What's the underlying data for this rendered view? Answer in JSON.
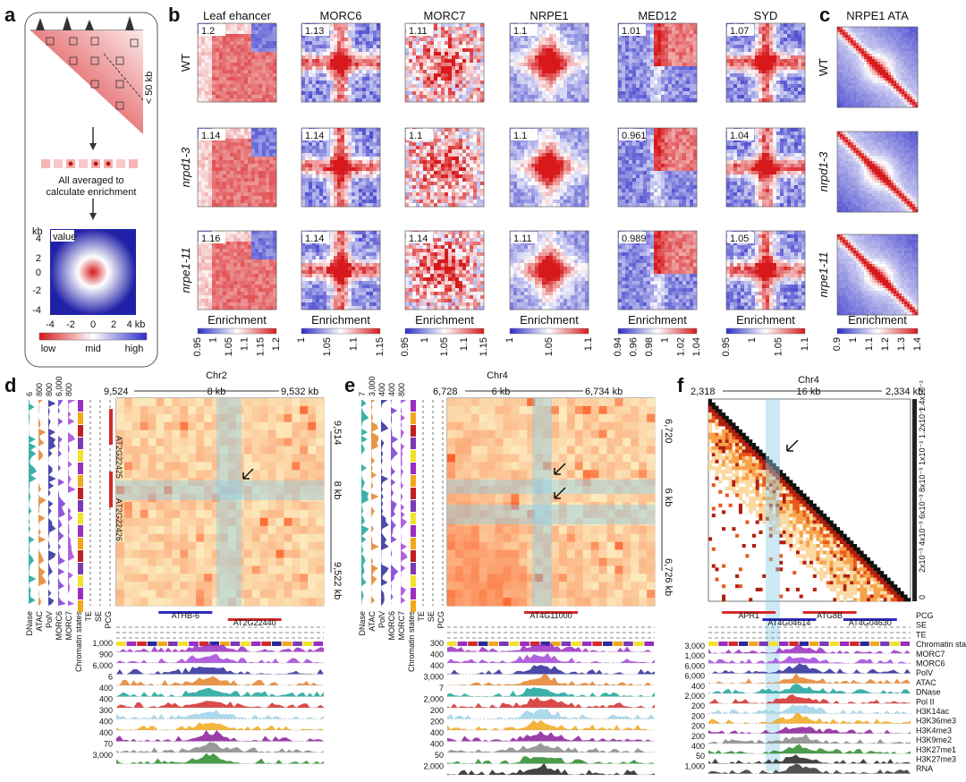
{
  "panels": [
    "a",
    "b",
    "c",
    "d",
    "e",
    "f"
  ],
  "panel_a": {
    "kb_label": "< 50 kb",
    "avg_text": [
      "All averaged to",
      "calculate enrichment"
    ],
    "value_label": "value",
    "ylabel": "kb",
    "yticks": [
      "4",
      "2",
      "0",
      "-2",
      "-4"
    ],
    "xticks": [
      "-4",
      "-2",
      "0",
      "2",
      "4 kb"
    ],
    "legend": [
      "low",
      "mid",
      "high"
    ],
    "colors": {
      "low": "#d7191c",
      "mid": "#ffffff",
      "high": "#2c2cc8"
    }
  },
  "panel_b": {
    "columns": [
      "Leaf ehancer",
      "MORC6",
      "MORC7",
      "NRPE1",
      "MED12",
      "SYD"
    ],
    "rows": [
      "WT",
      "nrpd1-3",
      "nrpe1-11"
    ],
    "values": [
      [
        "1.2",
        "1.13",
        "1.11",
        "1.1",
        "1.01",
        "1.07"
      ],
      [
        "1.14",
        "1.14",
        "1.1",
        "1.1",
        "0.961",
        "1.04"
      ],
      [
        "1.16",
        "1.14",
        "1.14",
        "1.11",
        "0.989",
        "1.05"
      ]
    ],
    "colorbar_title": "Enrichment",
    "colorbar_ticks": [
      [
        "0.95",
        "1",
        "1.05",
        "1.1",
        "1.15",
        "1.2"
      ],
      [
        "1",
        "1.05",
        "1.1",
        "1.15"
      ],
      [
        "0.95",
        "1",
        "1.05",
        "1.1",
        "1.15"
      ],
      [
        "1",
        "1.05",
        "1.1"
      ],
      [
        "0.94",
        "0.96",
        "0.98",
        "1",
        "1.02",
        "1.04"
      ],
      [
        "0.95",
        "1",
        "1.05",
        "1.1"
      ]
    ]
  },
  "panel_c": {
    "title": "NRPE1 ATA",
    "rows": [
      "WT",
      "nrpd1-3",
      "nrpe1-11"
    ],
    "colorbar_title": "Enrichment",
    "colorbar_ticks": [
      "0.9",
      "1",
      "1.1",
      "1.2",
      "1.3",
      "1.4"
    ]
  },
  "panel_d": {
    "chrom": "Chr2",
    "start": "9,524",
    "span": "8 kb",
    "end": "9,532 kb",
    "ystart": "9,514",
    "yspan": "8 kb",
    "yend": "9,522 kb",
    "side_scales": [
      "6",
      "800",
      "800",
      "6,000",
      "800"
    ],
    "side_tracks": [
      "DNase",
      "ATAC",
      "PolV",
      "MORC6",
      "MORC7",
      "Chromatin states",
      "TE",
      "SE",
      "PCG"
    ],
    "side_genes": [
      "AT2G22425",
      "AT2G22426"
    ],
    "genes": [
      "ATHB-6",
      "AT2G22440"
    ],
    "track_scales": [
      "1,000",
      "900",
      "6,000",
      "6",
      "400",
      "400",
      "300",
      "400",
      "400",
      "70",
      "3,000"
    ]
  },
  "panel_e": {
    "chrom": "Chr4",
    "start": "6,728",
    "span": "6 kb",
    "end": "6,734 kb",
    "ystart": "6,720",
    "yspan": "6 kb",
    "yend": "6,726 kb",
    "side_scales": [
      "7",
      "3,000",
      "400",
      "400",
      "800"
    ],
    "side_tracks": [
      "DNase",
      "ATAC",
      "PolV",
      "MORC6",
      "MORC7",
      "Chromatin states",
      "TE",
      "SE",
      "PCG"
    ],
    "genes": [
      "AT4G11000"
    ],
    "track_scales": [
      "300",
      "400",
      "400",
      "3,000",
      "7",
      "2,000",
      "200",
      "200",
      "400",
      "400",
      "50",
      "2,000"
    ]
  },
  "panel_f": {
    "chrom": "Chr4",
    "start": "2,318",
    "span": "16 kb",
    "end": "2,334 kb",
    "scale_ticks": [
      "0",
      "2x10⁻³",
      "4x10⁻³",
      "6x10⁻³",
      "8x10⁻³",
      "1x10⁻²",
      "1.2x10⁻²",
      "1.4x10⁻²"
    ],
    "genes": [
      "APR1",
      "AT4G04614",
      "ATG8B",
      "AT4G04630"
    ],
    "tracks": [
      "PCG",
      "SE",
      "TE",
      "Chromatin states",
      "MORC7",
      "MORC6",
      "PolV",
      "ATAC",
      "DNase",
      "Pol II",
      "H3K14ac",
      "H3K36me3",
      "H3K4me3",
      "H3K9me2",
      "H3K27me1",
      "H3K27me3",
      "RNA"
    ],
    "track_scales": [
      "3,000",
      "1,000",
      "6,000",
      "6,000",
      "400",
      "2,000",
      "200",
      "200",
      "200",
      "200",
      "400",
      "50",
      "1,000"
    ]
  }
}
